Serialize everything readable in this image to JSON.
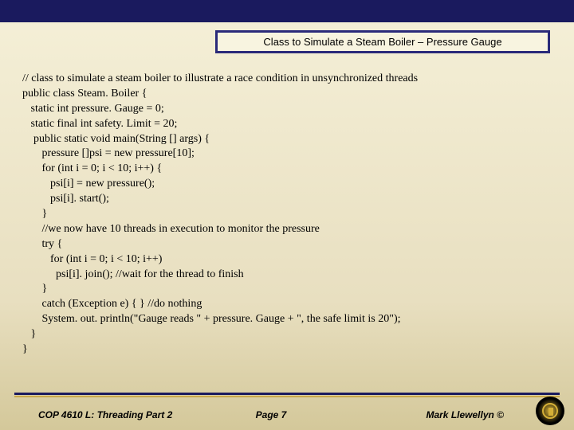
{
  "title": "Class to Simulate a Steam Boiler – Pressure Gauge",
  "code": "// class to simulate a steam boiler to illustrate a race condition in unsynchronized threads\npublic class Steam. Boiler {\n   static int pressure. Gauge = 0;\n   static final int safety. Limit = 20;\n    public static void main(String [] args) {\n       pressure []psi = new pressure[10];\n       for (int i = 0; i < 10; i++) {\n          psi[i] = new pressure();\n          psi[i]. start();\n       }\n       //we now have 10 threads in execution to monitor the pressure\n       try {\n          for (int i = 0; i < 10; i++)\n            psi[i]. join(); //wait for the thread to finish\n       }\n       catch (Exception e) { } //do nothing\n       System. out. println(\"Gauge reads \" + pressure. Gauge + \", the safe limit is 20\");\n   }\n}",
  "footer": {
    "left": "COP 4610 L: Threading Part 2",
    "center": "Page 7",
    "right": "Mark Llewellyn ©"
  },
  "colors": {
    "topbar": "#1a1a5e",
    "border": "#2a2a7a",
    "bg_gradient_top": "#f5f0d8",
    "bg_gradient_bottom": "#d4c89a",
    "gold": "#c9a84a"
  }
}
